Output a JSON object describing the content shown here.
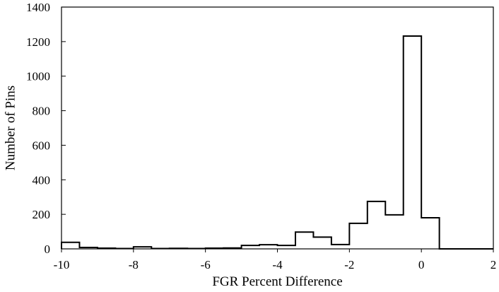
{
  "chart_data": {
    "type": "bar",
    "style": "step-histogram",
    "title": "",
    "xlabel": "FGR Percent Difference",
    "ylabel": "Number of Pins",
    "xlim": [
      -10,
      2
    ],
    "ylim": [
      0,
      1400
    ],
    "xticks": [
      -10,
      -8,
      -6,
      -4,
      -2,
      0,
      2
    ],
    "yticks": [
      0,
      200,
      400,
      600,
      800,
      1000,
      1200,
      1400
    ],
    "bin_width": 0.5,
    "bin_starts": [
      -10,
      -9.5,
      -9,
      -8.5,
      -8,
      -7.5,
      -7,
      -6.5,
      -6,
      -5.5,
      -5,
      -4.5,
      -4,
      -3.5,
      -3,
      -2.5,
      -2,
      -1.5,
      -1,
      -0.5,
      0,
      0.5,
      1,
      1.5
    ],
    "values": [
      38,
      8,
      4,
      2,
      12,
      2,
      3,
      2,
      4,
      5,
      20,
      24,
      20,
      97,
      68,
      25,
      148,
      275,
      197,
      1232,
      180,
      0,
      0,
      0
    ],
    "grid": false,
    "legend": "none",
    "line_color": "#000000",
    "frame": true
  }
}
